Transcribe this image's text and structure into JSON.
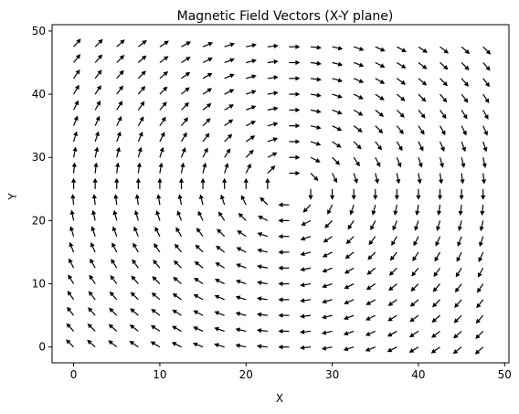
{
  "chart_data": {
    "type": "quiver",
    "title": "Magnetic Field Vectors (X-Y plane)",
    "xlabel": "X",
    "ylabel": "Y",
    "xlim": [
      -2.5,
      50.5
    ],
    "ylim": [
      -2.5,
      51
    ],
    "xticks": [
      0,
      10,
      20,
      30,
      40,
      50
    ],
    "yticks": [
      0,
      10,
      20,
      30,
      40,
      50
    ],
    "grid": false,
    "legend": "none",
    "field": {
      "description_units": "data",
      "x_start": 0,
      "x_end": 47.5,
      "x_step": 2.5,
      "y_start": 0,
      "y_end": 47.5,
      "y_step": 2.5,
      "center": [
        25,
        25
      ],
      "circulation": "clockwise",
      "arrow_color": "#000000"
    }
  }
}
